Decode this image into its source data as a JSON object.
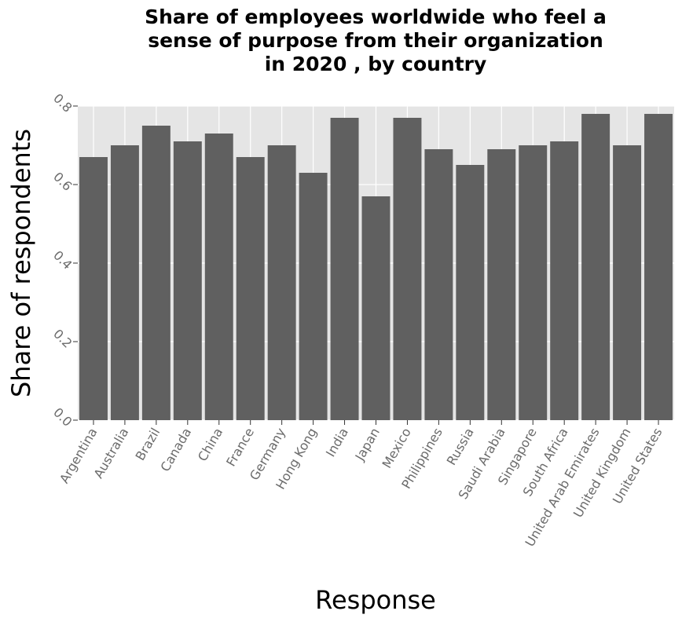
{
  "chart_data": {
    "type": "bar",
    "title_lines": [
      "Share of employees worldwide who feel a",
      "sense of purpose from their organization",
      "in 2020 , by country"
    ],
    "xlabel": "Response",
    "ylabel": "Share of respondents",
    "categories": [
      "Argentina",
      "Australia",
      "Brazil",
      "Canada",
      "China",
      "France",
      "Germany",
      "Hong Kong",
      "India",
      "Japan",
      "Mexico",
      "Philippines",
      "Russia",
      "Saudi Arabia",
      "Singapore",
      "South Africa",
      "United Arab Emirates",
      "United Kingdom",
      "United States"
    ],
    "values": [
      0.67,
      0.7,
      0.75,
      0.71,
      0.73,
      0.67,
      0.7,
      0.63,
      0.77,
      0.57,
      0.77,
      0.69,
      0.65,
      0.69,
      0.7,
      0.71,
      0.78,
      0.7,
      0.78
    ],
    "ylim": [
      0,
      0.8
    ],
    "yticks": [
      "0.0",
      "0.2",
      "0.4",
      "0.6",
      "0.8"
    ],
    "grid": true,
    "colors": {
      "bar": "#606060",
      "panel": "#e5e5e5",
      "grid": "#ffffff"
    }
  }
}
